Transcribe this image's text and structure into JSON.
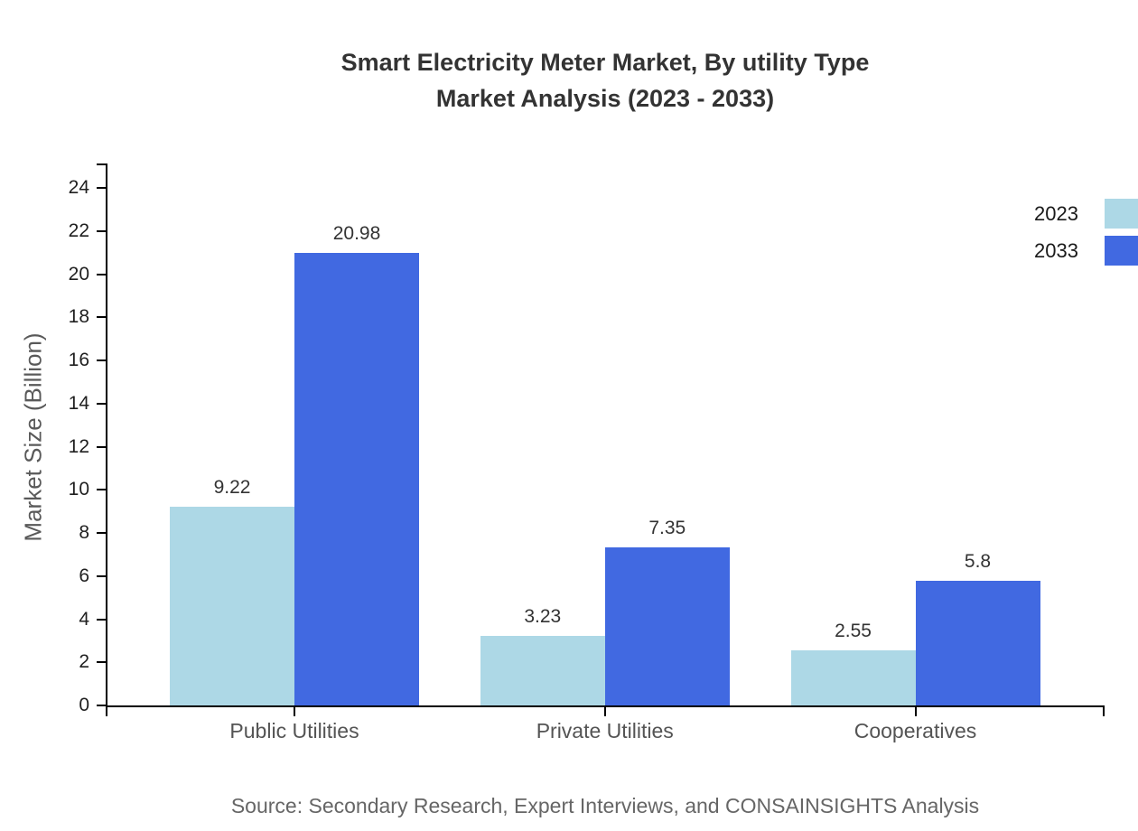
{
  "page": {
    "background": "#ffffff"
  },
  "chart_data": {
    "type": "bar",
    "title": "Smart Electricity Meter Market, By utility Type Market Analysis (2023 - 2033)",
    "title_line1": "Smart Electricity Meter Market, By utility Type",
    "title_line2": "Market Analysis (2023 - 2033)",
    "categories": [
      "Public Utilities",
      "Private Utilities",
      "Cooperatives"
    ],
    "series": [
      {
        "name": "2023",
        "color": "#ADD8E6",
        "values": [
          9.22,
          3.23,
          2.55
        ],
        "labels": [
          "9.22",
          "3.23",
          "2.55"
        ]
      },
      {
        "name": "2033",
        "color": "#4169E1",
        "values": [
          20.98,
          7.35,
          5.8
        ],
        "labels": [
          "20.98",
          "7.35",
          "5.8"
        ]
      }
    ],
    "xlabel": "",
    "ylabel": "Market Size (Billion)",
    "ylim": [
      0,
      24
    ],
    "ytick_step": 2,
    "ytick_labels": [
      "0",
      "2",
      "4",
      "6",
      "8",
      "10",
      "12",
      "14",
      "16",
      "18",
      "20",
      "22",
      "24"
    ],
    "grid": false,
    "legend_position": "top-right",
    "axis_color": "#000000",
    "value_label_color": "#333333",
    "source_note": "Source: Secondary Research, Expert Interviews, and CONSAINSIGHTS Analysis"
  }
}
